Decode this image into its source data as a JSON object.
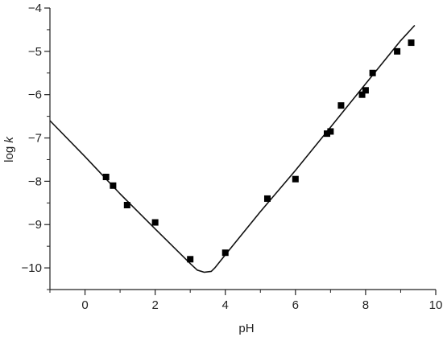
{
  "chart_data": {
    "type": "scatter",
    "xlabel": "pH",
    "ylabel_prefix": "log ",
    "ylabel_var": "k",
    "xlim": [
      -1,
      10
    ],
    "ylim": [
      -10.5,
      -4
    ],
    "xticks": [
      0,
      2,
      4,
      6,
      8,
      10
    ],
    "yticks": [
      -4,
      -5,
      -6,
      -7,
      -8,
      -9,
      -10
    ],
    "xtick_labels": [
      "0",
      "2",
      "4",
      "6",
      "8",
      "10"
    ],
    "ytick_labels": [
      "−4",
      "−5",
      "−6",
      "−7",
      "−8",
      "−9",
      "−10"
    ],
    "grid": false,
    "series": [
      {
        "kind": "points",
        "marker": "square",
        "x": [
          0.6,
          0.8,
          1.2,
          2.0,
          3.0,
          4.0,
          5.2,
          6.0,
          6.9,
          7.0,
          7.3,
          7.9,
          8.0,
          8.2,
          8.9,
          9.3
        ],
        "y": [
          -7.9,
          -8.1,
          -8.55,
          -8.95,
          -9.8,
          -9.65,
          -8.4,
          -7.95,
          -6.9,
          -6.85,
          -6.25,
          -6.0,
          -5.9,
          -5.5,
          -5.0,
          -4.8
        ]
      },
      {
        "kind": "fit-line",
        "x": [
          -1.0,
          0.0,
          1.0,
          2.0,
          3.0,
          3.2,
          3.4,
          3.6,
          3.7,
          4.0,
          5.0,
          6.0,
          7.0,
          8.0,
          9.0,
          9.4
        ],
        "y": [
          -6.6,
          -7.43,
          -8.29,
          -9.1,
          -9.9,
          -10.05,
          -10.1,
          -10.08,
          -10.0,
          -9.7,
          -8.7,
          -7.75,
          -6.75,
          -5.75,
          -4.75,
          -4.4
        ]
      }
    ]
  }
}
